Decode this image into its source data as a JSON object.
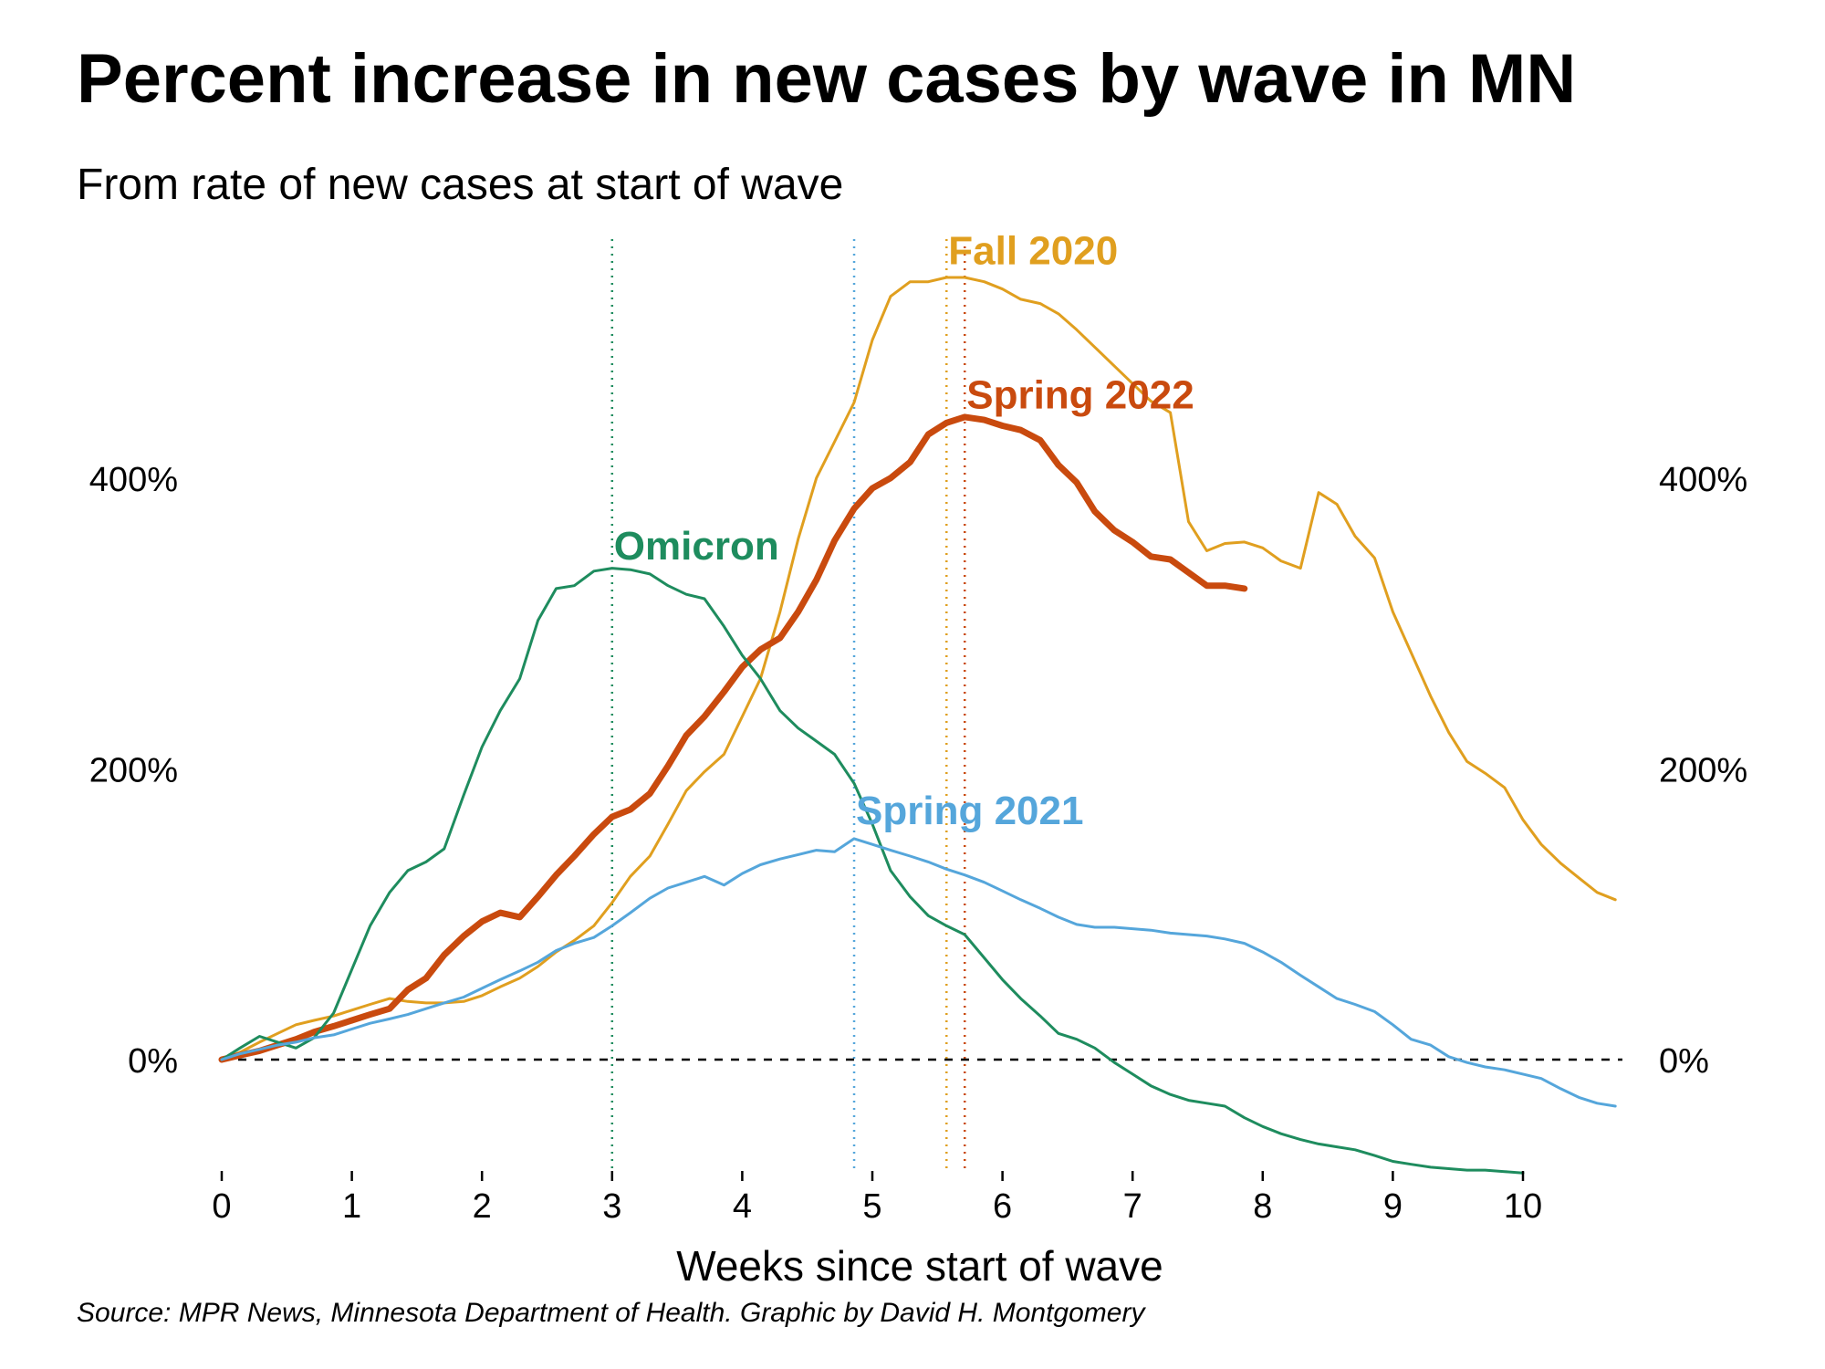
{
  "chart_data": {
    "type": "line",
    "title": "Percent increase in new cases by wave in MN",
    "subtitle": "From rate of new cases at start of wave",
    "xlabel": "Weeks since start of wave",
    "ylabel": "",
    "source": "Source: MPR News, Minnesota Department of Health. Graphic by David H. Montgomery",
    "xlim": [
      0,
      10.7
    ],
    "ylim": [
      -75,
      560
    ],
    "x_ticks": [
      0,
      1,
      2,
      3,
      4,
      5,
      6,
      7,
      8,
      9,
      10
    ],
    "y_ticks": [
      0,
      200,
      400
    ],
    "y_tick_labels": [
      "0%",
      "200%",
      "400%"
    ],
    "x_tick_labels": [
      "0",
      "1",
      "2",
      "3",
      "4",
      "5",
      "6",
      "7",
      "8",
      "9",
      "10"
    ],
    "grid": false,
    "legend": "none (direct labels)",
    "zero_line": {
      "y": 0,
      "style": "dashed",
      "color": "#000000"
    },
    "series": [
      {
        "name": "Fall 2020",
        "color": "#E09F1F",
        "stroke_width": 3,
        "peak_week": 5.57,
        "label_at": [
          5.57,
          547
        ],
        "points": [
          [
            0,
            0
          ],
          [
            0.14,
            5
          ],
          [
            0.29,
            12
          ],
          [
            0.43,
            18
          ],
          [
            0.57,
            24
          ],
          [
            0.71,
            27
          ],
          [
            0.86,
            30
          ],
          [
            1,
            34
          ],
          [
            1.14,
            38
          ],
          [
            1.29,
            42
          ],
          [
            1.43,
            40
          ],
          [
            1.57,
            39
          ],
          [
            1.71,
            39
          ],
          [
            1.86,
            40
          ],
          [
            2,
            44
          ],
          [
            2.14,
            50
          ],
          [
            2.29,
            56
          ],
          [
            2.43,
            64
          ],
          [
            2.57,
            74
          ],
          [
            2.71,
            82
          ],
          [
            2.86,
            92
          ],
          [
            3,
            108
          ],
          [
            3.14,
            126
          ],
          [
            3.29,
            140
          ],
          [
            3.43,
            162
          ],
          [
            3.57,
            185
          ],
          [
            3.71,
            198
          ],
          [
            3.86,
            210
          ],
          [
            4,
            236
          ],
          [
            4.14,
            262
          ],
          [
            4.29,
            308
          ],
          [
            4.43,
            358
          ],
          [
            4.57,
            400
          ],
          [
            4.71,
            425
          ],
          [
            4.86,
            452
          ],
          [
            5,
            495
          ],
          [
            5.14,
            525
          ],
          [
            5.29,
            535
          ],
          [
            5.43,
            535
          ],
          [
            5.57,
            538
          ],
          [
            5.71,
            538
          ],
          [
            5.86,
            535
          ],
          [
            6,
            530
          ],
          [
            6.14,
            523
          ],
          [
            6.29,
            520
          ],
          [
            6.43,
            513
          ],
          [
            6.57,
            502
          ],
          [
            6.71,
            490
          ],
          [
            6.86,
            477
          ],
          [
            7,
            465
          ],
          [
            7.14,
            453
          ],
          [
            7.29,
            445
          ],
          [
            7.43,
            370
          ],
          [
            7.57,
            350
          ],
          [
            7.71,
            355
          ],
          [
            7.86,
            356
          ],
          [
            8,
            352
          ],
          [
            8.14,
            343
          ],
          [
            8.29,
            338
          ],
          [
            8.43,
            390
          ],
          [
            8.57,
            382
          ],
          [
            8.71,
            360
          ],
          [
            8.86,
            345
          ],
          [
            9,
            308
          ],
          [
            9.14,
            280
          ],
          [
            9.29,
            250
          ],
          [
            9.43,
            225
          ],
          [
            9.57,
            205
          ],
          [
            9.71,
            197
          ],
          [
            9.86,
            187
          ],
          [
            10,
            165
          ],
          [
            10.14,
            148
          ],
          [
            10.29,
            135
          ],
          [
            10.43,
            125
          ],
          [
            10.57,
            115
          ],
          [
            10.71,
            110
          ]
        ]
      },
      {
        "name": "Spring 2022",
        "color": "#C94A0E",
        "stroke_width": 7,
        "peak_week": 5.71,
        "label_at": [
          5.71,
          448
        ],
        "points": [
          [
            0,
            0
          ],
          [
            0.14,
            3
          ],
          [
            0.29,
            6
          ],
          [
            0.43,
            10
          ],
          [
            0.57,
            14
          ],
          [
            0.71,
            19
          ],
          [
            0.86,
            23
          ],
          [
            1,
            27
          ],
          [
            1.14,
            31
          ],
          [
            1.29,
            35
          ],
          [
            1.43,
            48
          ],
          [
            1.57,
            56
          ],
          [
            1.71,
            72
          ],
          [
            1.86,
            85
          ],
          [
            2,
            95
          ],
          [
            2.14,
            101
          ],
          [
            2.29,
            98
          ],
          [
            2.43,
            112
          ],
          [
            2.57,
            127
          ],
          [
            2.71,
            140
          ],
          [
            2.86,
            155
          ],
          [
            3,
            167
          ],
          [
            3.14,
            172
          ],
          [
            3.29,
            183
          ],
          [
            3.43,
            202
          ],
          [
            3.57,
            223
          ],
          [
            3.71,
            236
          ],
          [
            3.86,
            253
          ],
          [
            4,
            270
          ],
          [
            4.14,
            282
          ],
          [
            4.29,
            290
          ],
          [
            4.43,
            308
          ],
          [
            4.57,
            330
          ],
          [
            4.71,
            357
          ],
          [
            4.86,
            379
          ],
          [
            5,
            393
          ],
          [
            5.14,
            400
          ],
          [
            5.29,
            411
          ],
          [
            5.43,
            430
          ],
          [
            5.57,
            438
          ],
          [
            5.71,
            442
          ],
          [
            5.86,
            440
          ],
          [
            6,
            436
          ],
          [
            6.14,
            433
          ],
          [
            6.29,
            426
          ],
          [
            6.43,
            409
          ],
          [
            6.57,
            397
          ],
          [
            6.71,
            377
          ],
          [
            6.86,
            364
          ],
          [
            7,
            356
          ],
          [
            7.14,
            346
          ],
          [
            7.29,
            344
          ],
          [
            7.43,
            335
          ],
          [
            7.57,
            326
          ],
          [
            7.71,
            326
          ],
          [
            7.86,
            324
          ]
        ]
      },
      {
        "name": "Omicron",
        "color": "#1E8C5E",
        "stroke_width": 3,
        "peak_week": 3.0,
        "label_at": [
          3.0,
          344
        ],
        "points": [
          [
            0,
            0
          ],
          [
            0.14,
            8
          ],
          [
            0.29,
            16
          ],
          [
            0.43,
            12
          ],
          [
            0.57,
            8
          ],
          [
            0.71,
            15
          ],
          [
            0.86,
            32
          ],
          [
            1,
            62
          ],
          [
            1.14,
            92
          ],
          [
            1.29,
            115
          ],
          [
            1.43,
            130
          ],
          [
            1.57,
            136
          ],
          [
            1.71,
            145
          ],
          [
            1.86,
            182
          ],
          [
            2,
            215
          ],
          [
            2.14,
            240
          ],
          [
            2.29,
            262
          ],
          [
            2.43,
            302
          ],
          [
            2.57,
            324
          ],
          [
            2.71,
            326
          ],
          [
            2.86,
            336
          ],
          [
            3,
            338
          ],
          [
            3.14,
            337
          ],
          [
            3.29,
            334
          ],
          [
            3.43,
            326
          ],
          [
            3.57,
            320
          ],
          [
            3.71,
            317
          ],
          [
            3.86,
            298
          ],
          [
            4,
            278
          ],
          [
            4.14,
            262
          ],
          [
            4.29,
            240
          ],
          [
            4.43,
            228
          ],
          [
            4.57,
            219
          ],
          [
            4.71,
            210
          ],
          [
            4.86,
            190
          ],
          [
            5,
            162
          ],
          [
            5.14,
            130
          ],
          [
            5.29,
            112
          ],
          [
            5.43,
            99
          ],
          [
            5.57,
            92
          ],
          [
            5.71,
            86
          ],
          [
            5.86,
            70
          ],
          [
            6,
            55
          ],
          [
            6.14,
            42
          ],
          [
            6.29,
            30
          ],
          [
            6.43,
            18
          ],
          [
            6.57,
            14
          ],
          [
            6.71,
            8
          ],
          [
            6.86,
            -2
          ],
          [
            7,
            -10
          ],
          [
            7.14,
            -18
          ],
          [
            7.29,
            -24
          ],
          [
            7.43,
            -28
          ],
          [
            7.57,
            -30
          ],
          [
            7.71,
            -32
          ],
          [
            7.86,
            -40
          ],
          [
            8,
            -46
          ],
          [
            8.14,
            -51
          ],
          [
            8.29,
            -55
          ],
          [
            8.43,
            -58
          ],
          [
            8.57,
            -60
          ],
          [
            8.71,
            -62
          ],
          [
            8.86,
            -66
          ],
          [
            9,
            -70
          ],
          [
            9.14,
            -72
          ],
          [
            9.29,
            -74
          ],
          [
            9.43,
            -75
          ],
          [
            9.57,
            -76
          ],
          [
            9.71,
            -76
          ],
          [
            9.86,
            -77
          ],
          [
            10,
            -78
          ]
        ]
      },
      {
        "name": "Spring 2021",
        "color": "#55A6DB",
        "stroke_width": 3,
        "peak_week": 4.86,
        "label_at": [
          4.86,
          162
        ],
        "points": [
          [
            0,
            0
          ],
          [
            0.14,
            4
          ],
          [
            0.29,
            7
          ],
          [
            0.43,
            10
          ],
          [
            0.57,
            12
          ],
          [
            0.71,
            15
          ],
          [
            0.86,
            17
          ],
          [
            1,
            21
          ],
          [
            1.14,
            25
          ],
          [
            1.29,
            28
          ],
          [
            1.43,
            31
          ],
          [
            1.57,
            35
          ],
          [
            1.71,
            39
          ],
          [
            1.86,
            43
          ],
          [
            2,
            49
          ],
          [
            2.14,
            55
          ],
          [
            2.29,
            61
          ],
          [
            2.43,
            67
          ],
          [
            2.57,
            75
          ],
          [
            2.71,
            80
          ],
          [
            2.86,
            84
          ],
          [
            3,
            92
          ],
          [
            3.14,
            101
          ],
          [
            3.29,
            111
          ],
          [
            3.43,
            118
          ],
          [
            3.57,
            122
          ],
          [
            3.71,
            126
          ],
          [
            3.86,
            120
          ],
          [
            4,
            128
          ],
          [
            4.14,
            134
          ],
          [
            4.29,
            138
          ],
          [
            4.43,
            141
          ],
          [
            4.57,
            144
          ],
          [
            4.71,
            143
          ],
          [
            4.86,
            152
          ],
          [
            5,
            148
          ],
          [
            5.14,
            144
          ],
          [
            5.29,
            140
          ],
          [
            5.43,
            136
          ],
          [
            5.57,
            131
          ],
          [
            5.71,
            127
          ],
          [
            5.86,
            122
          ],
          [
            6,
            116
          ],
          [
            6.14,
            110
          ],
          [
            6.29,
            104
          ],
          [
            6.43,
            98
          ],
          [
            6.57,
            93
          ],
          [
            6.71,
            91
          ],
          [
            6.86,
            91
          ],
          [
            7,
            90
          ],
          [
            7.14,
            89
          ],
          [
            7.29,
            87
          ],
          [
            7.43,
            86
          ],
          [
            7.57,
            85
          ],
          [
            7.71,
            83
          ],
          [
            7.86,
            80
          ],
          [
            8,
            74
          ],
          [
            8.14,
            67
          ],
          [
            8.29,
            58
          ],
          [
            8.43,
            50
          ],
          [
            8.57,
            42
          ],
          [
            8.71,
            38
          ],
          [
            8.86,
            33
          ],
          [
            9,
            24
          ],
          [
            9.14,
            14
          ],
          [
            9.29,
            10
          ],
          [
            9.43,
            2
          ],
          [
            9.57,
            -2
          ],
          [
            9.71,
            -5
          ],
          [
            9.86,
            -7
          ],
          [
            10,
            -10
          ],
          [
            10.14,
            -13
          ],
          [
            10.29,
            -20
          ],
          [
            10.43,
            -26
          ],
          [
            10.57,
            -30
          ],
          [
            10.71,
            -32
          ]
        ]
      }
    ]
  }
}
